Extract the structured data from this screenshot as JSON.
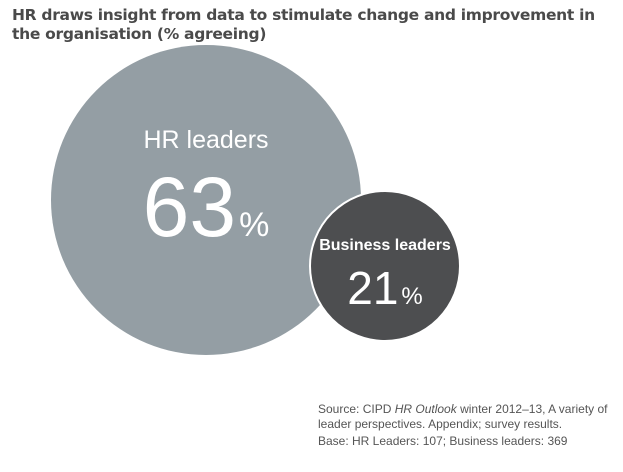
{
  "chart_data": {
    "type": "bubble",
    "title": "HR draws insight from data to stimulate change and improvement in the organisation (% agreeing)",
    "series": [
      {
        "name": "HR leaders",
        "value": 63,
        "unit": "%",
        "color": "#949ea4"
      },
      {
        "name": "Business leaders",
        "value": 21,
        "unit": "%",
        "color": "#4d4e50"
      }
    ],
    "source": {
      "prefix": "Source: CIPD ",
      "publication": "HR Outlook",
      "rest": " winter 2012–13, A variety of leader perspectives. Appendix; survey results.",
      "base": "Base: HR Leaders: 107; Business leaders: 369"
    }
  }
}
